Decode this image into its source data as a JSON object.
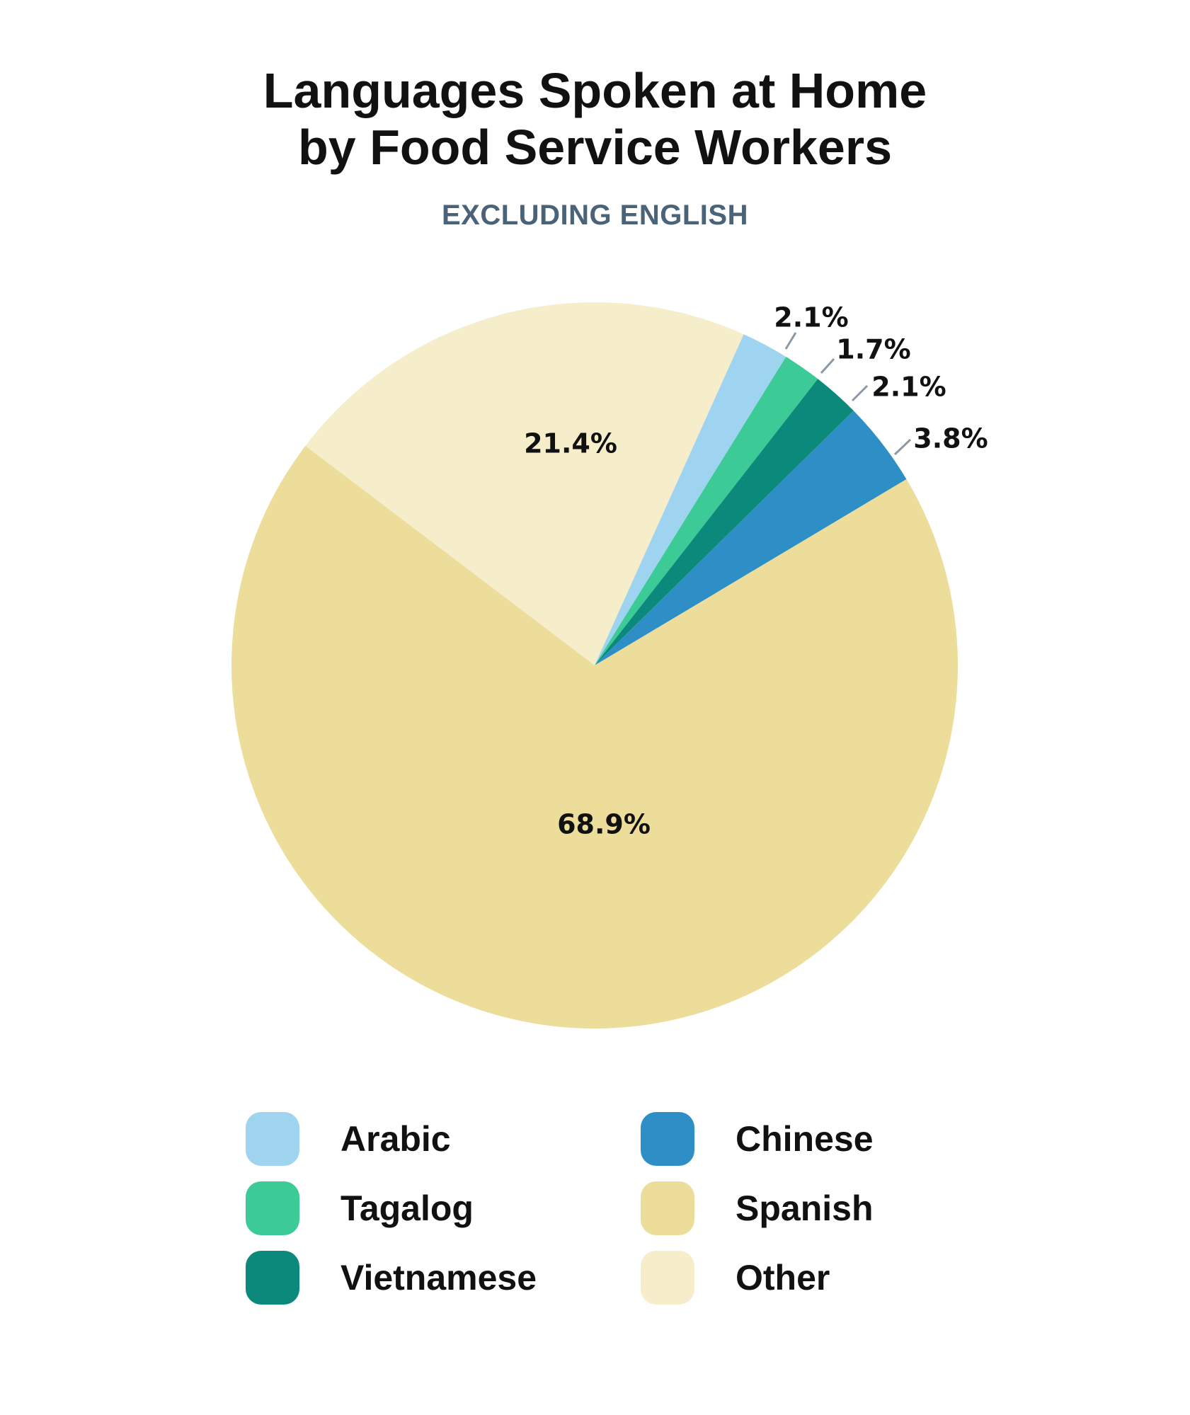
{
  "header": {
    "title_line1": "Languages Spoken at Home",
    "title_line2": "by Food Service Workers",
    "subtitle": "EXCLUDING ENGLISH"
  },
  "chart_data": {
    "type": "pie",
    "title": "Languages Spoken at Home by Food Service Workers",
    "subtitle": "EXCLUDING ENGLISH",
    "unit": "%",
    "slices": [
      {
        "name": "Arabic",
        "value": 2.1,
        "label": "2.1%",
        "color": "#9fd4f1"
      },
      {
        "name": "Tagalog",
        "value": 1.7,
        "label": "1.7%",
        "color": "#3ccb97"
      },
      {
        "name": "Vietnamese",
        "value": 2.1,
        "label": "2.1%",
        "color": "#0b8a7b"
      },
      {
        "name": "Chinese",
        "value": 3.8,
        "label": "3.8%",
        "color": "#2e8fc6"
      },
      {
        "name": "Spanish",
        "value": 68.9,
        "label": "68.9%",
        "color": "#eddd9b"
      },
      {
        "name": "Other",
        "value": 21.4,
        "label": "21.4%",
        "color": "#f6eecb"
      }
    ],
    "legend_placement": "bottom"
  },
  "legend": {
    "items": [
      {
        "label": "Arabic",
        "color": "#9fd4f1"
      },
      {
        "label": "Tagalog",
        "color": "#3ccb97"
      },
      {
        "label": "Vietnamese",
        "color": "#0b8a7b"
      },
      {
        "label": "Chinese",
        "color": "#2e8fc6"
      },
      {
        "label": "Spanish",
        "color": "#eddd9b"
      },
      {
        "label": "Other",
        "color": "#f6eecb"
      }
    ]
  }
}
